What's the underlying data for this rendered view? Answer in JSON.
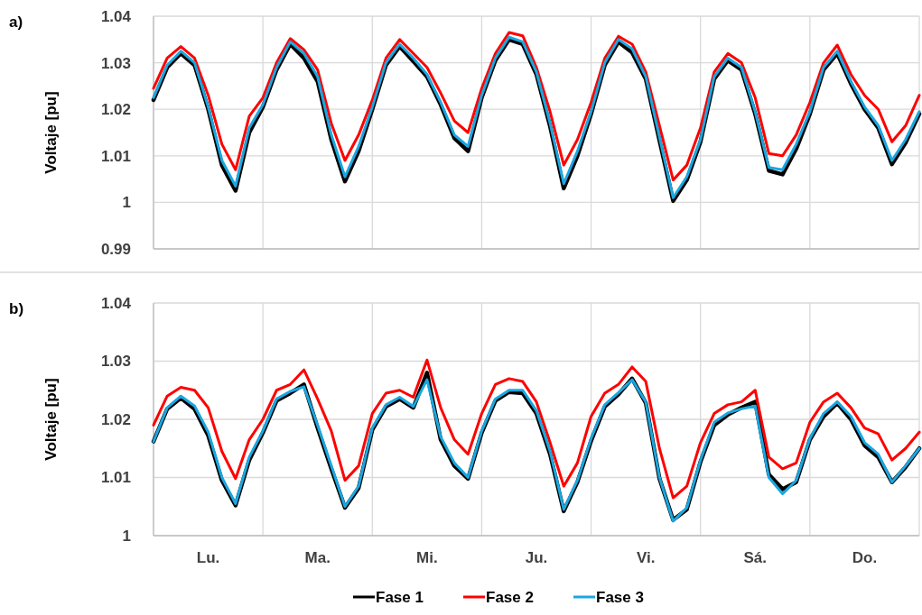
{
  "chart_data": [
    {
      "type": "line",
      "title": "a)",
      "ylabel": "Voltaje [pu]",
      "ylim": [
        0.99,
        1.04
      ],
      "yticks": [
        {
          "value": 0.99,
          "label": "0.99"
        },
        {
          "value": 1,
          "label": "1"
        },
        {
          "value": 1.01,
          "label": "1.01"
        },
        {
          "value": 1.02,
          "label": "1.02"
        },
        {
          "value": 1.03,
          "label": "1.03"
        },
        {
          "value": 1.04,
          "label": "1.04"
        }
      ],
      "categories": [
        null,
        null,
        null,
        null,
        null,
        null,
        null,
        null,
        null,
        null,
        null,
        null,
        null,
        null,
        null,
        null,
        null,
        null,
        null,
        null,
        null,
        null,
        null,
        null,
        null,
        null,
        null,
        null,
        null,
        null,
        null,
        null,
        null,
        null,
        null,
        null,
        null,
        null,
        null,
        null,
        null,
        null,
        null,
        null,
        null,
        null,
        null,
        null,
        null,
        null,
        null,
        null,
        null,
        null,
        null,
        null,
        null
      ],
      "tick_labels": "y",
      "grid": true,
      "marker": "none",
      "line_style": "solid",
      "series": [
        {
          "color": "#000000",
          "values": [
            1.022,
            1.029,
            1.032,
            1.0295,
            1.02,
            1.008,
            1.0025,
            1.015,
            1.0205,
            1.0285,
            1.034,
            1.031,
            1.026,
            1.0135,
            1.0045,
            1.011,
            1.02,
            1.0295,
            1.0335,
            1.0303,
            1.027,
            1.021,
            1.0138,
            1.011,
            1.0225,
            1.0305,
            1.035,
            1.034,
            1.0275,
            1.0163,
            1.003,
            1.01,
            1.019,
            1.0295,
            1.0345,
            1.0322,
            1.0265,
            1.0133,
            1.0003,
            1.0048,
            1.013,
            1.0265,
            1.0305,
            1.0285,
            1.019,
            1.0068,
            1.006,
            1.0115,
            1.019,
            1.0285,
            1.032,
            1.0255,
            1.02,
            1.016,
            1.0082,
            1.0128,
            1.019
          ]
        },
        {
          "color": "#ff0000",
          "values": [
            1.0245,
            1.031,
            1.0335,
            1.031,
            1.023,
            1.0125,
            1.007,
            1.0185,
            1.0225,
            1.03,
            1.0352,
            1.0328,
            1.0285,
            1.017,
            1.009,
            1.0145,
            1.022,
            1.031,
            1.035,
            1.032,
            1.029,
            1.0235,
            1.0175,
            1.015,
            1.0245,
            1.032,
            1.0365,
            1.0358,
            1.029,
            1.0195,
            1.008,
            1.0135,
            1.0215,
            1.031,
            1.0357,
            1.034,
            1.028,
            1.0165,
            1.0048,
            1.008,
            1.016,
            1.028,
            1.032,
            1.03,
            1.0225,
            1.0105,
            1.01,
            1.0145,
            1.0215,
            1.03,
            1.0338,
            1.0275,
            1.023,
            1.02,
            1.013,
            1.0165,
            1.023
          ]
        },
        {
          "color": "#1aa7e0",
          "values": [
            1.0225,
            1.0295,
            1.0325,
            1.03,
            1.0205,
            1.009,
            1.0035,
            1.016,
            1.021,
            1.029,
            1.0345,
            1.032,
            1.027,
            1.0145,
            1.0055,
            1.012,
            1.0205,
            1.03,
            1.034,
            1.031,
            1.0275,
            1.0215,
            1.0145,
            1.012,
            1.023,
            1.031,
            1.0355,
            1.0345,
            1.028,
            1.017,
            1.004,
            1.011,
            1.0195,
            1.03,
            1.035,
            1.033,
            1.027,
            1.014,
            1.001,
            1.0055,
            1.0135,
            1.027,
            1.031,
            1.029,
            1.0195,
            1.0075,
            1.007,
            1.0125,
            1.0195,
            1.029,
            1.0325,
            1.026,
            1.0205,
            1.0165,
            1.009,
            1.0135,
            1.0195
          ]
        }
      ]
    },
    {
      "type": "line",
      "title": "b)",
      "ylabel": "Voltaje [pu]",
      "ylim": [
        1,
        1.04
      ],
      "yticks": [
        {
          "value": 1,
          "label": "1"
        },
        {
          "value": 1.01,
          "label": "1.01"
        },
        {
          "value": 1.02,
          "label": "1.02"
        },
        {
          "value": 1.03,
          "label": "1.03"
        },
        {
          "value": 1.04,
          "label": "1.04"
        }
      ],
      "categories": [
        null,
        null,
        null,
        null,
        "Lu.",
        null,
        null,
        null,
        null,
        null,
        null,
        null,
        "Ma.",
        null,
        null,
        null,
        null,
        null,
        null,
        null,
        "Mi.",
        null,
        null,
        null,
        null,
        null,
        null,
        null,
        "Ju.",
        null,
        null,
        null,
        null,
        null,
        null,
        null,
        "Vi.",
        null,
        null,
        null,
        null,
        null,
        null,
        null,
        "Sá.",
        null,
        null,
        null,
        null,
        null,
        null,
        null,
        "Do.",
        null,
        null,
        null,
        null
      ],
      "grid": true,
      "legend": "bottom",
      "marker": "none",
      "line_style": "solid",
      "series": [
        {
          "name": "Fase 1",
          "color": "#000000",
          "values": [
            1.0162,
            1.0218,
            1.0237,
            1.0218,
            1.0172,
            1.0095,
            1.0052,
            1.013,
            1.0177,
            1.0232,
            1.0245,
            1.026,
            1.0185,
            1.0115,
            1.0048,
            1.0082,
            1.0182,
            1.0222,
            1.0235,
            1.022,
            1.028,
            1.0165,
            1.012,
            1.0098,
            1.0177,
            1.0232,
            1.0247,
            1.0245,
            1.021,
            1.014,
            1.0042,
            1.0092,
            1.0163,
            1.0222,
            1.0243,
            1.027,
            1.0228,
            1.0098,
            1.0027,
            1.0045,
            1.0127,
            1.019,
            1.0208,
            1.022,
            1.023,
            1.0105,
            1.008,
            1.0092,
            1.0165,
            1.0205,
            1.0228,
            1.02,
            1.0155,
            1.0135,
            1.0092,
            1.0118,
            1.015
          ]
        },
        {
          "name": "Fase 2",
          "color": "#ff0000",
          "values": [
            1.019,
            1.024,
            1.0255,
            1.025,
            1.022,
            1.0145,
            1.0098,
            1.0165,
            1.02,
            1.025,
            1.026,
            1.0285,
            1.0235,
            1.018,
            1.0095,
            1.012,
            1.021,
            1.0245,
            1.025,
            1.0238,
            1.0302,
            1.022,
            1.0165,
            1.014,
            1.021,
            1.026,
            1.027,
            1.0265,
            1.023,
            1.016,
            1.0085,
            1.0125,
            1.0205,
            1.0245,
            1.026,
            1.029,
            1.0265,
            1.015,
            1.0065,
            1.0085,
            1.016,
            1.021,
            1.0225,
            1.023,
            1.025,
            1.0135,
            1.0115,
            1.0125,
            1.0195,
            1.023,
            1.0245,
            1.022,
            1.0185,
            1.0175,
            1.013,
            1.015,
            1.0178
          ]
        },
        {
          "name": "Fase 3",
          "color": "#1aa7e0",
          "values": [
            1.0162,
            1.022,
            1.024,
            1.0223,
            1.0178,
            1.01,
            1.0055,
            1.0135,
            1.018,
            1.0235,
            1.0248,
            1.0256,
            1.019,
            1.012,
            1.005,
            1.0085,
            1.0185,
            1.0225,
            1.0238,
            1.0222,
            1.0268,
            1.017,
            1.0125,
            1.01,
            1.018,
            1.0235,
            1.025,
            1.025,
            1.0215,
            1.0145,
            1.0045,
            1.0095,
            1.0167,
            1.0225,
            1.0246,
            1.0268,
            1.023,
            1.01,
            1.0025,
            1.0048,
            1.013,
            1.0195,
            1.0211,
            1.0218,
            1.0223,
            1.01,
            1.0072,
            1.0095,
            1.0167,
            1.021,
            1.023,
            1.0205,
            1.016,
            1.014,
            1.0092,
            1.012,
            1.015
          ]
        }
      ]
    }
  ]
}
